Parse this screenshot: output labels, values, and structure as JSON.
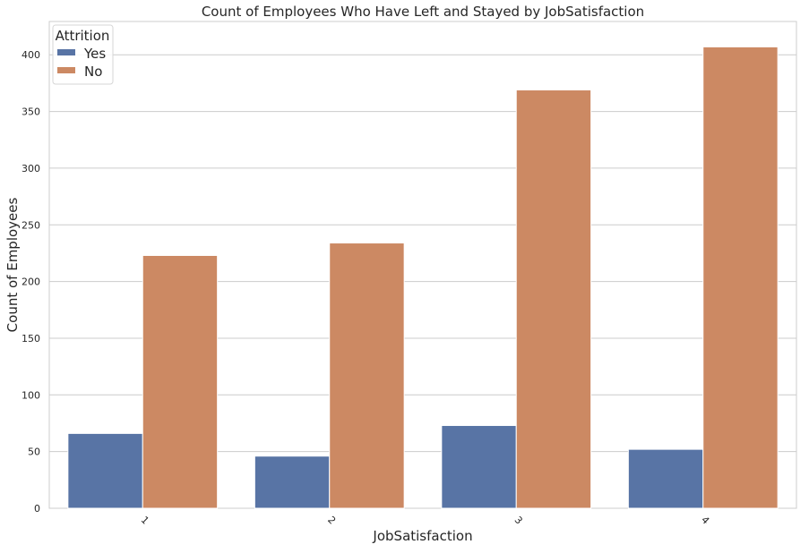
{
  "chart_data": {
    "type": "bar",
    "title": "Count of Employees Who Have Left and Stayed by JobSatisfaction",
    "xlabel": "JobSatisfaction",
    "ylabel": "Count of Employees",
    "categories": [
      "1",
      "2",
      "3",
      "4"
    ],
    "series": [
      {
        "name": "Yes",
        "values": [
          66,
          46,
          73,
          52
        ],
        "color": "#5874a5"
      },
      {
        "name": "No",
        "values": [
          223,
          234,
          369,
          407
        ],
        "color": "#cc8963"
      }
    ],
    "ylim": [
      0,
      429.4
    ],
    "yticks": [
      0,
      50,
      100,
      150,
      200,
      250,
      300,
      350,
      400
    ],
    "grid": true,
    "legend": {
      "title": "Attrition",
      "placement": "top-left"
    }
  }
}
